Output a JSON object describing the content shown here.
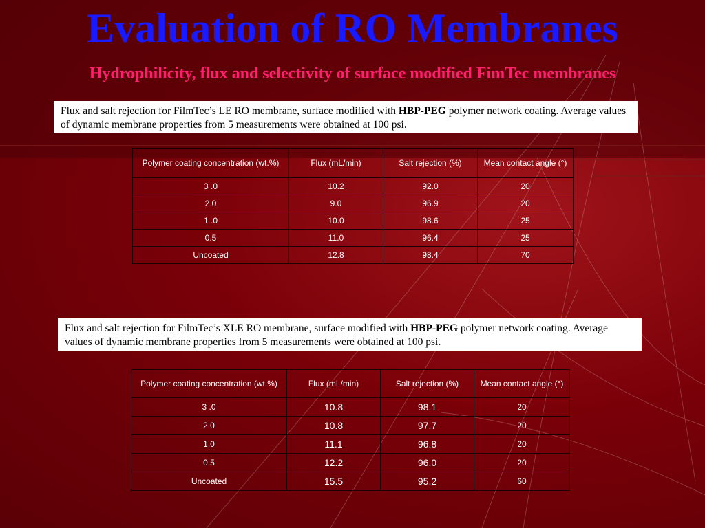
{
  "title": "Evaluation of RO Membranes",
  "subtitle": "Hydrophilicity, flux and selectivity of surface modified FimTec membranes",
  "caption1": {
    "pre": "Flux and salt rejection for FilmTec’s LE RO membrane, surface modified with ",
    "bold": "HBP-PEG",
    "post": " polymer network coating. Average values of dynamic membrane properties from 5 measurements were obtained at 100 psi."
  },
  "caption2": {
    "pre": "Flux and salt rejection for FilmTec’s XLE RO membrane, surface modified with ",
    "bold": "HBP-PEG",
    "post": " polymer network coating. Average values of dynamic membrane properties from 5 measurements were obtained at 100 psi."
  },
  "table1": {
    "headers": [
      "Polymer coating concentration (wt.%)",
      "Flux (mL/min)",
      "Salt rejection (%)",
      "Mean contact angle (°)"
    ],
    "rows": [
      [
        "3 .0",
        "10.2",
        "92.0",
        "20"
      ],
      [
        "2.0",
        "9.0",
        "96.9",
        "20"
      ],
      [
        "1 .0",
        "10.0",
        "98.6",
        "25"
      ],
      [
        "0.5",
        "11.0",
        "96.4",
        "25"
      ],
      [
        "Uncoated",
        "12.8",
        "98.4",
        "70"
      ]
    ]
  },
  "table2": {
    "headers": [
      "Polymer coating concentration (wt.%)",
      "Flux (mL/min)",
      "Salt rejection (%)",
      "Mean contact angle (°)"
    ],
    "rows": [
      [
        "3 .0",
        "10.8",
        "98.1",
        "20"
      ],
      [
        "2.0",
        "10.8",
        "97.7",
        "20"
      ],
      [
        "1.0",
        "11.1",
        "96.8",
        "20"
      ],
      [
        "0.5",
        "12.2",
        "96.0",
        "20"
      ],
      [
        "Uncoated",
        "15.5",
        "95.2",
        "60"
      ]
    ]
  }
}
